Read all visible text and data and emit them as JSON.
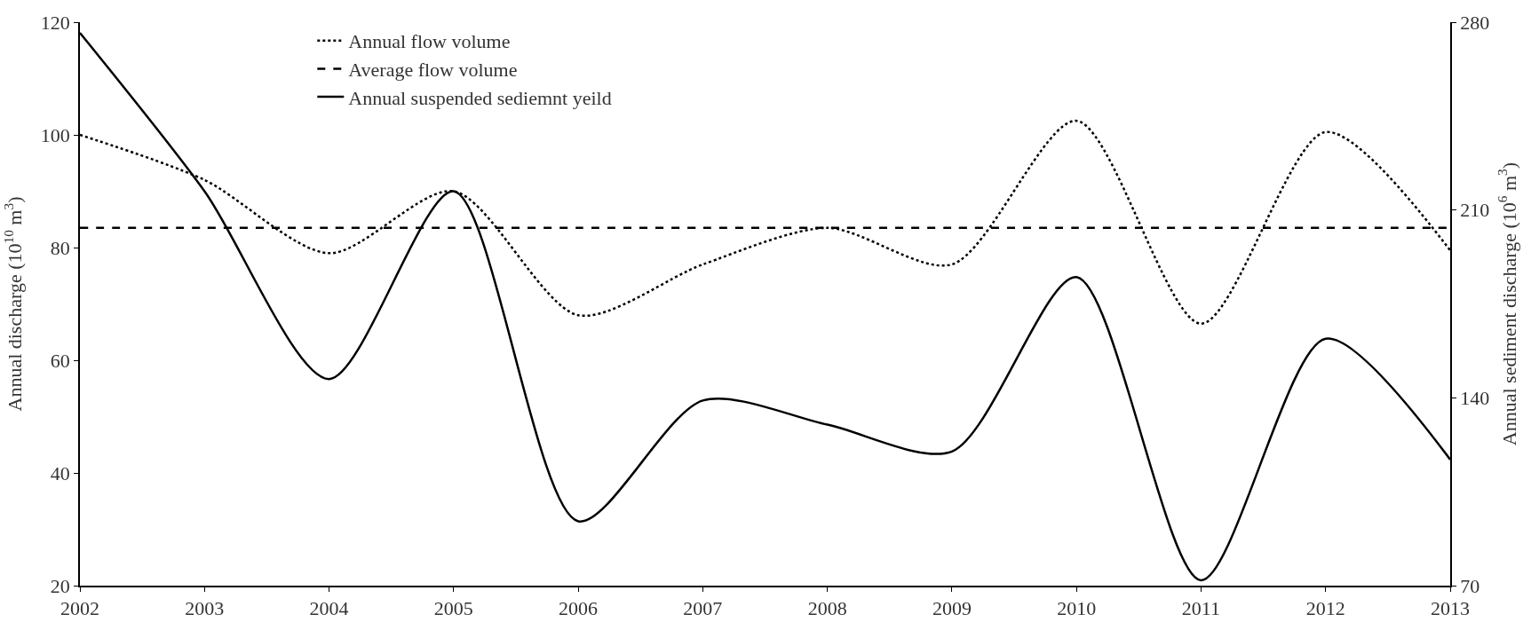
{
  "chart_data": {
    "type": "line",
    "xlabel": null,
    "ylabel": "Annual discharge (10$^{10}$ m$^{3}$)",
    "y2label": "Annual sediment discharge (10$^{6}$ m$^{3}$)",
    "x": [
      2002,
      2003,
      2004,
      2005,
      2006,
      2007,
      2008,
      2009,
      2010,
      2011,
      2012,
      2013
    ],
    "series": [
      {
        "name": "Annual flow volume",
        "color": "#000000",
        "line_style": "dotted",
        "values": [
          100,
          92,
          79,
          90,
          68,
          77,
          83.5,
          77,
          102.5,
          66.5,
          100.5,
          79.5
        ]
      },
      {
        "name": "Average flow volume",
        "color": "#000000",
        "line_style": "dashed",
        "values": [
          83.5,
          83.5,
          83.5,
          83.5,
          83.5,
          83.5,
          83.5,
          83.5,
          83.5,
          83.5,
          83.5,
          83.5
        ]
      },
      {
        "name": "Annual suspended sediemnt yeild",
        "color": "#000000",
        "line_style": "solid",
        "axis": "y2",
        "values": [
          276,
          217,
          147,
          217,
          94,
          139,
          130,
          120,
          185,
          72,
          162,
          117
        ]
      }
    ],
    "xlim": [
      2002,
      2013
    ],
    "xticks": [
      2002,
      2003,
      2004,
      2005,
      2006,
      2007,
      2008,
      2009,
      2010,
      2011,
      2012,
      2013
    ],
    "ylim": [
      20,
      120
    ],
    "yticks": [
      20,
      40,
      60,
      80,
      100,
      120
    ],
    "y2lim": [
      70,
      280
    ],
    "y2ticks": [
      70,
      140,
      210,
      280
    ],
    "legend": "top",
    "marker": "none"
  }
}
